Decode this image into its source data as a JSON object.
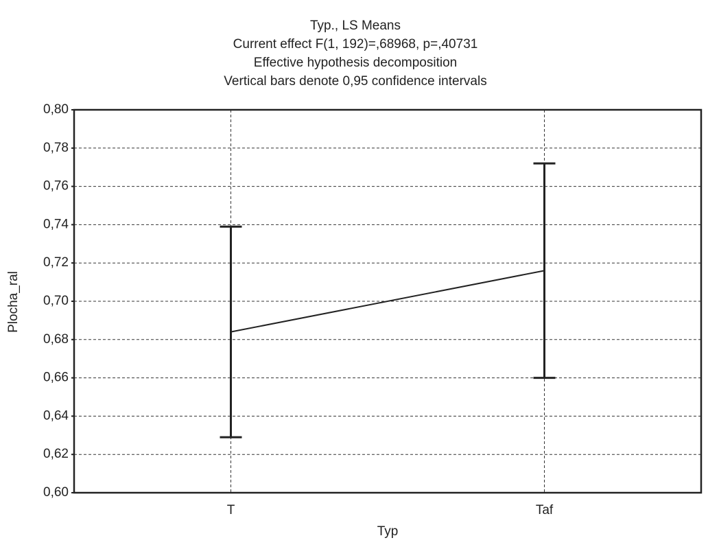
{
  "chart_data": {
    "type": "line",
    "title": [
      "Typ., LS Means",
      "Current effect F(1, 192)=,68968, p=,40731",
      "Effective hypothesis decomposition",
      "Vertical bars denote 0,95 confidence intervals"
    ],
    "xlabel": "Typ",
    "ylabel": "Plocha_ral",
    "categories": [
      "T",
      "Taf"
    ],
    "values": [
      0.684,
      0.716
    ],
    "error": [
      0.055,
      0.056
    ],
    "color": "#222222",
    "ylim": [
      0.6,
      0.8
    ],
    "yticks": [
      {
        "value": 0.6,
        "label": "0,60"
      },
      {
        "value": 0.62,
        "label": "0,62"
      },
      {
        "value": 0.64,
        "label": "0,64"
      },
      {
        "value": 0.66,
        "label": "0,66"
      },
      {
        "value": 0.68,
        "label": "0,68"
      },
      {
        "value": 0.7,
        "label": "0,70"
      },
      {
        "value": 0.72,
        "label": "0,72"
      },
      {
        "value": 0.74,
        "label": "0,74"
      },
      {
        "value": 0.76,
        "label": "0,76"
      },
      {
        "value": 0.78,
        "label": "0,78"
      },
      {
        "value": 0.8,
        "label": "0,80"
      }
    ],
    "grid": true
  }
}
